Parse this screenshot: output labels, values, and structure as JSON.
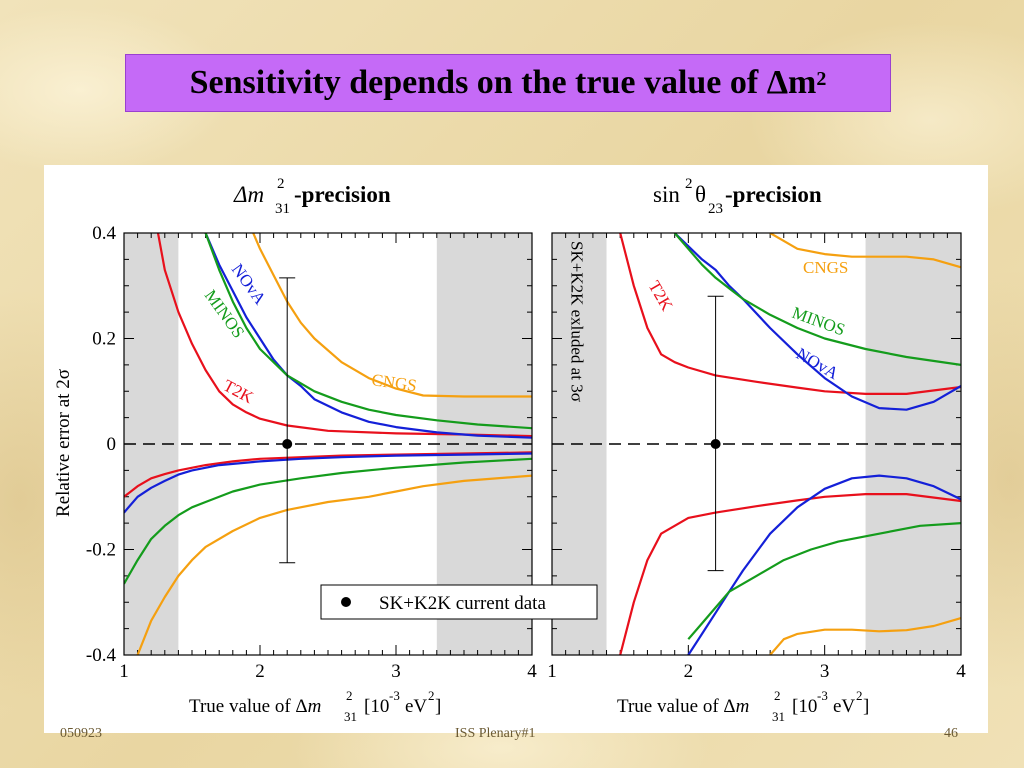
{
  "slide": {
    "title_text": "Sensitivity depends on the true value of Δm",
    "title_sup": "2",
    "footer_left": "050923",
    "footer_center": "ISS Plenary#1",
    "footer_right": "46"
  },
  "colors": {
    "T2K": "#e8101c",
    "NOvA": "#1420d8",
    "MINOS": "#149c1c",
    "CNGS": "#f5a010",
    "title_bg": "#c56af7",
    "excluded_band": "#d9d9d9"
  },
  "chart_data": [
    {
      "type": "line",
      "title": "Δm²₃₁-precision",
      "title_text": "-precision",
      "xlabel": "True value of Δm²₃₁ [10⁻³ eV²]",
      "ylabel": "Relative error at 2σ",
      "xlim": [
        1,
        4
      ],
      "ylim": [
        -0.4,
        0.4
      ],
      "xticks": [
        "1",
        "2",
        "3",
        "4"
      ],
      "yticks": [
        "-0.4",
        "-0.2",
        "0",
        "0.2",
        "0.4"
      ],
      "shaded_regions": [
        [
          1,
          1.4
        ],
        [
          3.3,
          4
        ]
      ],
      "reference_point": {
        "x": 2.2,
        "y": 0,
        "err_low": -0.225,
        "err_high": 0.315
      },
      "series": [
        {
          "name": "T2K",
          "x": [
            1.25,
            1.3,
            1.4,
            1.5,
            1.6,
            1.7,
            1.8,
            1.9,
            2.0,
            2.2,
            2.5,
            3.0,
            3.5,
            4.0
          ],
          "upper": [
            0.4,
            0.33,
            0.25,
            0.19,
            0.14,
            0.1,
            0.075,
            0.06,
            0.048,
            0.035,
            0.025,
            0.02,
            0.018,
            0.015
          ],
          "x_lower": [
            1.0,
            1.1,
            1.2,
            1.3,
            1.4,
            1.6,
            1.8,
            2.0,
            2.3,
            2.6,
            3.0,
            3.5,
            4.0
          ],
          "lower": [
            -0.1,
            -0.08,
            -0.065,
            -0.057,
            -0.05,
            -0.04,
            -0.033,
            -0.028,
            -0.025,
            -0.022,
            -0.02,
            -0.018,
            -0.016
          ]
        },
        {
          "name": "NOvA",
          "x": [
            1.6,
            1.7,
            1.8,
            1.9,
            2.0,
            2.1,
            2.2,
            2.3,
            2.4,
            2.6,
            2.8,
            3.0,
            3.3,
            3.6,
            4.0
          ],
          "upper": [
            0.4,
            0.34,
            0.29,
            0.24,
            0.2,
            0.16,
            0.13,
            0.11,
            0.085,
            0.06,
            0.042,
            0.032,
            0.022,
            0.016,
            0.012
          ],
          "x_lower": [
            1.0,
            1.1,
            1.2,
            1.3,
            1.4,
            1.5,
            1.7,
            2.0,
            2.3,
            2.6,
            3.0,
            3.5,
            4.0
          ],
          "lower": [
            -0.13,
            -0.1,
            -0.083,
            -0.07,
            -0.058,
            -0.05,
            -0.04,
            -0.033,
            -0.028,
            -0.025,
            -0.022,
            -0.02,
            -0.018
          ]
        },
        {
          "name": "MINOS",
          "x": [
            1.6,
            1.7,
            1.8,
            1.9,
            2.0,
            2.2,
            2.4,
            2.6,
            2.8,
            3.0,
            3.3,
            3.6,
            4.0
          ],
          "upper": [
            0.4,
            0.33,
            0.27,
            0.22,
            0.18,
            0.13,
            0.1,
            0.08,
            0.065,
            0.055,
            0.045,
            0.037,
            0.03
          ],
          "x_lower": [
            1.0,
            1.1,
            1.2,
            1.3,
            1.4,
            1.5,
            1.6,
            1.8,
            2.0,
            2.3,
            2.6,
            3.0,
            3.5,
            4.0
          ],
          "lower": [
            -0.265,
            -0.22,
            -0.18,
            -0.155,
            -0.135,
            -0.12,
            -0.11,
            -0.09,
            -0.077,
            -0.065,
            -0.055,
            -0.045,
            -0.035,
            -0.028
          ]
        },
        {
          "name": "CNGS",
          "x": [
            1.95,
            2.0,
            2.1,
            2.2,
            2.3,
            2.4,
            2.6,
            2.8,
            3.0,
            3.2,
            3.5,
            3.8,
            4.0
          ],
          "upper": [
            0.4,
            0.37,
            0.32,
            0.27,
            0.23,
            0.2,
            0.155,
            0.125,
            0.105,
            0.092,
            0.09,
            0.09,
            0.09
          ],
          "x_lower": [
            1.1,
            1.2,
            1.3,
            1.4,
            1.5,
            1.6,
            1.8,
            2.0,
            2.2,
            2.5,
            2.8,
            3.0,
            3.2,
            3.5,
            4.0
          ],
          "lower": [
            -0.4,
            -0.335,
            -0.29,
            -0.25,
            -0.22,
            -0.195,
            -0.165,
            -0.14,
            -0.125,
            -0.11,
            -0.1,
            -0.09,
            -0.08,
            -0.07,
            -0.06
          ]
        }
      ]
    },
    {
      "type": "line",
      "title": "sin²θ₂₃-precision",
      "title_text": "-precision",
      "xlabel": "True value of Δm²₃₁ [10⁻³ eV²]",
      "ylabel": "",
      "xlim": [
        1,
        4
      ],
      "ylim": [
        -0.4,
        0.4
      ],
      "xticks": [
        "1",
        "2",
        "3",
        "4"
      ],
      "yticks": [],
      "shaded_regions": [
        [
          1,
          1.4
        ],
        [
          3.3,
          4
        ]
      ],
      "excluded_label": "SK+K2K exluded at 3σ",
      "reference_point": {
        "x": 2.2,
        "y": 0,
        "err_low": -0.24,
        "err_high": 0.28
      },
      "series": [
        {
          "name": "T2K",
          "x": [
            1.5,
            1.6,
            1.7,
            1.8,
            1.9,
            2.0,
            2.2,
            2.5,
            2.8,
            3.0,
            3.3,
            3.6,
            4.0
          ],
          "upper": [
            0.4,
            0.3,
            0.22,
            0.17,
            0.155,
            0.145,
            0.13,
            0.118,
            0.107,
            0.1,
            0.095,
            0.095,
            0.108
          ],
          "x_lower": [
            1.5,
            1.6,
            1.7,
            1.8,
            1.9,
            2.0,
            2.2,
            2.5,
            2.8,
            3.0,
            3.3,
            3.6,
            4.0
          ],
          "lower": [
            -0.4,
            -0.3,
            -0.22,
            -0.17,
            -0.155,
            -0.14,
            -0.13,
            -0.118,
            -0.107,
            -0.1,
            -0.095,
            -0.095,
            -0.108
          ]
        },
        {
          "name": "NOvA",
          "x": [
            1.9,
            2.0,
            2.1,
            2.2,
            2.3,
            2.4,
            2.6,
            2.8,
            3.0,
            3.2,
            3.4,
            3.6,
            3.8,
            4.0
          ],
          "upper": [
            0.4,
            0.375,
            0.35,
            0.33,
            0.3,
            0.275,
            0.22,
            0.17,
            0.125,
            0.09,
            0.068,
            0.065,
            0.08,
            0.11
          ],
          "x_lower": [
            2.0,
            2.1,
            2.2,
            2.3,
            2.4,
            2.6,
            2.8,
            3.0,
            3.2,
            3.4,
            3.6,
            3.8,
            4.0
          ],
          "lower": [
            -0.4,
            -0.36,
            -0.32,
            -0.28,
            -0.24,
            -0.17,
            -0.12,
            -0.085,
            -0.065,
            -0.06,
            -0.065,
            -0.08,
            -0.105
          ]
        },
        {
          "name": "MINOS",
          "x": [
            1.9,
            2.0,
            2.1,
            2.2,
            2.3,
            2.4,
            2.6,
            2.8,
            3.0,
            3.3,
            3.6,
            4.0
          ],
          "upper": [
            0.4,
            0.37,
            0.34,
            0.315,
            0.295,
            0.275,
            0.245,
            0.22,
            0.2,
            0.18,
            0.165,
            0.15
          ],
          "x_lower": [
            2.0,
            2.1,
            2.2,
            2.3,
            2.5,
            2.7,
            2.9,
            3.1,
            3.4,
            3.7,
            4.0
          ],
          "lower": [
            -0.37,
            -0.34,
            -0.31,
            -0.28,
            -0.25,
            -0.22,
            -0.2,
            -0.185,
            -0.17,
            -0.155,
            -0.15
          ]
        },
        {
          "name": "CNGS",
          "x": [
            2.6,
            2.7,
            2.8,
            3.0,
            3.2,
            3.4,
            3.6,
            3.8,
            4.0
          ],
          "upper": [
            0.4,
            0.385,
            0.37,
            0.36,
            0.355,
            0.355,
            0.355,
            0.35,
            0.335
          ],
          "x_lower": [
            2.6,
            2.7,
            2.8,
            3.0,
            3.2,
            3.4,
            3.6,
            3.8,
            4.0
          ],
          "lower": [
            -0.4,
            -0.37,
            -0.36,
            -0.352,
            -0.352,
            -0.355,
            -0.353,
            -0.345,
            -0.33
          ]
        }
      ]
    }
  ],
  "legend": {
    "label": "SK+K2K current data"
  }
}
